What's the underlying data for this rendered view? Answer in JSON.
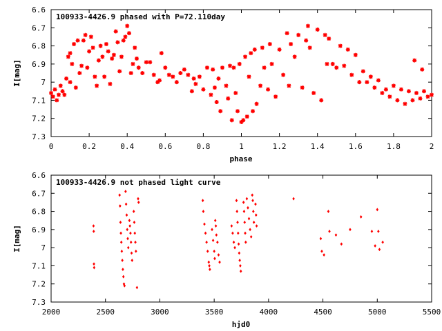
{
  "chart_data": [
    {
      "type": "scatter",
      "title": "100933-4426.9 phased with P=72.110day",
      "xlabel": "phase",
      "ylabel": "I[mag]",
      "xlim": [
        0,
        2
      ],
      "ylim": [
        6.6,
        7.3
      ],
      "y_inverted": true,
      "grid": false,
      "legend": "none",
      "marker": "star",
      "color": "#ff0000",
      "x_ticks": [
        {
          "value": 0,
          "label": "0"
        },
        {
          "value": 0.2,
          "label": "0.2"
        },
        {
          "value": 0.4,
          "label": "0.4"
        },
        {
          "value": 0.6,
          "label": "0.6"
        },
        {
          "value": 0.8,
          "label": "0.8"
        },
        {
          "value": 1.0,
          "label": "1"
        },
        {
          "value": 1.2,
          "label": "1.2"
        },
        {
          "value": 1.4,
          "label": "1.4"
        },
        {
          "value": 1.6,
          "label": "1.6"
        },
        {
          "value": 1.8,
          "label": "1.8"
        },
        {
          "value": 2.0,
          "label": "2"
        }
      ],
      "y_ticks": [
        {
          "value": 6.6,
          "label": "6.6"
        },
        {
          "value": 6.7,
          "label": "6.7"
        },
        {
          "value": 6.8,
          "label": "6.8"
        },
        {
          "value": 6.9,
          "label": "6.9"
        },
        {
          "value": 7.0,
          "label": "7"
        },
        {
          "value": 7.1,
          "label": "7.1"
        },
        {
          "value": 7.2,
          "label": "7.2"
        },
        {
          "value": 7.3,
          "label": "7.3"
        }
      ],
      "points": [
        [
          0.0,
          7.06
        ],
        [
          0.01,
          7.08
        ],
        [
          0.02,
          7.04
        ],
        [
          0.03,
          7.1
        ],
        [
          0.04,
          7.07
        ],
        [
          0.05,
          7.02
        ],
        [
          0.06,
          7.05
        ],
        [
          0.07,
          7.07
        ],
        [
          0.08,
          6.98
        ],
        [
          0.09,
          6.86
        ],
        [
          0.1,
          6.84
        ],
        [
          0.1,
          7.0
        ],
        [
          0.11,
          6.9
        ],
        [
          0.12,
          6.79
        ],
        [
          0.13,
          7.03
        ],
        [
          0.14,
          6.77
        ],
        [
          0.15,
          6.95
        ],
        [
          0.16,
          6.91
        ],
        [
          0.17,
          6.77
        ],
        [
          0.18,
          6.74
        ],
        [
          0.19,
          6.92
        ],
        [
          0.2,
          6.83
        ],
        [
          0.21,
          6.75
        ],
        [
          0.22,
          6.81
        ],
        [
          0.23,
          6.97
        ],
        [
          0.24,
          7.02
        ],
        [
          0.25,
          6.88
        ],
        [
          0.26,
          6.8
        ],
        [
          0.27,
          6.86
        ],
        [
          0.28,
          6.97
        ],
        [
          0.29,
          6.79
        ],
        [
          0.3,
          6.83
        ],
        [
          0.31,
          7.01
        ],
        [
          0.32,
          6.87
        ],
        [
          0.33,
          6.85
        ],
        [
          0.34,
          6.72
        ],
        [
          0.35,
          6.78
        ],
        [
          0.36,
          6.94
        ],
        [
          0.37,
          6.86
        ],
        [
          0.38,
          6.77
        ],
        [
          0.39,
          6.75
        ],
        [
          0.4,
          6.69
        ],
        [
          0.41,
          6.73
        ],
        [
          0.42,
          6.95
        ],
        [
          0.43,
          6.9
        ],
        [
          0.44,
          6.81
        ],
        [
          0.45,
          6.87
        ],
        [
          0.46,
          6.92
        ],
        [
          0.48,
          6.95
        ],
        [
          0.5,
          6.89
        ],
        [
          0.52,
          6.89
        ],
        [
          0.54,
          6.96
        ],
        [
          0.56,
          7.0
        ],
        [
          0.57,
          6.99
        ],
        [
          0.58,
          6.84
        ],
        [
          0.6,
          6.92
        ],
        [
          0.62,
          6.96
        ],
        [
          0.64,
          6.97
        ],
        [
          0.66,
          7.0
        ],
        [
          0.68,
          6.95
        ],
        [
          0.7,
          6.93
        ],
        [
          0.72,
          6.96
        ],
        [
          0.74,
          7.05
        ],
        [
          0.75,
          6.98
        ],
        [
          0.76,
          7.01
        ],
        [
          0.78,
          6.97
        ],
        [
          0.8,
          7.04
        ],
        [
          0.82,
          6.92
        ],
        [
          0.84,
          7.07
        ],
        [
          0.85,
          6.93
        ],
        [
          0.86,
          7.03
        ],
        [
          0.87,
          7.11
        ],
        [
          0.88,
          6.98
        ],
        [
          0.89,
          7.16
        ],
        [
          0.9,
          6.92
        ],
        [
          0.92,
          7.02
        ],
        [
          0.93,
          7.09
        ],
        [
          0.94,
          6.91
        ],
        [
          0.95,
          7.21
        ],
        [
          0.96,
          6.92
        ],
        [
          0.97,
          7.06
        ],
        [
          0.98,
          7.16
        ],
        [
          0.99,
          6.9
        ],
        [
          1.0,
          7.22
        ],
        [
          1.01,
          7.21
        ],
        [
          1.02,
          6.86
        ],
        [
          1.03,
          7.19
        ],
        [
          1.04,
          6.97
        ],
        [
          1.05,
          6.84
        ],
        [
          1.06,
          7.16
        ],
        [
          1.07,
          6.82
        ],
        [
          1.08,
          7.12
        ],
        [
          1.1,
          7.02
        ],
        [
          1.11,
          6.81
        ],
        [
          1.12,
          6.92
        ],
        [
          1.14,
          7.04
        ],
        [
          1.15,
          6.79
        ],
        [
          1.16,
          6.9
        ],
        [
          1.18,
          7.08
        ],
        [
          1.2,
          6.82
        ],
        [
          1.22,
          6.96
        ],
        [
          1.24,
          6.73
        ],
        [
          1.25,
          7.02
        ],
        [
          1.26,
          6.79
        ],
        [
          1.28,
          6.86
        ],
        [
          1.3,
          6.74
        ],
        [
          1.32,
          7.03
        ],
        [
          1.34,
          6.77
        ],
        [
          1.35,
          6.69
        ],
        [
          1.36,
          6.81
        ],
        [
          1.38,
          7.06
        ],
        [
          1.4,
          6.71
        ],
        [
          1.42,
          7.1
        ],
        [
          1.44,
          6.74
        ],
        [
          1.45,
          6.9
        ],
        [
          1.46,
          6.76
        ],
        [
          1.48,
          6.9
        ],
        [
          1.5,
          6.92
        ],
        [
          1.52,
          6.8
        ],
        [
          1.54,
          6.91
        ],
        [
          1.56,
          6.82
        ],
        [
          1.58,
          6.96
        ],
        [
          1.6,
          6.85
        ],
        [
          1.62,
          7.0
        ],
        [
          1.64,
          6.94
        ],
        [
          1.66,
          7.0
        ],
        [
          1.68,
          6.97
        ],
        [
          1.7,
          7.03
        ],
        [
          1.72,
          6.99
        ],
        [
          1.74,
          7.06
        ],
        [
          1.76,
          7.04
        ],
        [
          1.78,
          7.08
        ],
        [
          1.8,
          7.02
        ],
        [
          1.82,
          7.1
        ],
        [
          1.84,
          7.04
        ],
        [
          1.86,
          7.12
        ],
        [
          1.88,
          7.05
        ],
        [
          1.9,
          7.1
        ],
        [
          1.91,
          6.88
        ],
        [
          1.92,
          7.06
        ],
        [
          1.94,
          7.09
        ],
        [
          1.95,
          6.93
        ],
        [
          1.96,
          7.05
        ],
        [
          1.98,
          7.08
        ],
        [
          2.0,
          7.07
        ]
      ]
    },
    {
      "type": "scatter",
      "title": "100933-4426.9 not phased light curve",
      "xlabel": "hjd0",
      "ylabel": "I[mag]",
      "xlim": [
        2000,
        5500
      ],
      "ylim": [
        6.6,
        7.3
      ],
      "y_inverted": true,
      "grid": false,
      "legend": "none",
      "marker": "diamond",
      "color": "#ff0000",
      "x_ticks": [
        {
          "value": 2000,
          "label": "2000"
        },
        {
          "value": 2500,
          "label": "2500"
        },
        {
          "value": 3000,
          "label": "3000"
        },
        {
          "value": 3500,
          "label": "3500"
        },
        {
          "value": 4000,
          "label": "4000"
        },
        {
          "value": 4500,
          "label": "4500"
        },
        {
          "value": 5000,
          "label": "5000"
        },
        {
          "value": 5500,
          "label": "5500"
        }
      ],
      "y_ticks": [
        {
          "value": 6.6,
          "label": "6.6"
        },
        {
          "value": 6.7,
          "label": "6.7"
        },
        {
          "value": 6.8,
          "label": "6.8"
        },
        {
          "value": 6.9,
          "label": "6.9"
        },
        {
          "value": 7.0,
          "label": "7"
        },
        {
          "value": 7.1,
          "label": "7.1"
        },
        {
          "value": 7.2,
          "label": "7.2"
        },
        {
          "value": 7.3,
          "label": "7.3"
        }
      ],
      "points": [
        [
          2390,
          6.88
        ],
        [
          2392,
          6.91
        ],
        [
          2394,
          7.09
        ],
        [
          2396,
          7.11
        ],
        [
          2630,
          6.71
        ],
        [
          2634,
          6.77
        ],
        [
          2638,
          6.86
        ],
        [
          2642,
          6.92
        ],
        [
          2646,
          6.97
        ],
        [
          2650,
          7.02
        ],
        [
          2655,
          7.07
        ],
        [
          2660,
          7.12
        ],
        [
          2665,
          7.16
        ],
        [
          2670,
          7.2
        ],
        [
          2675,
          7.21
        ],
        [
          2685,
          6.69
        ],
        [
          2690,
          6.76
        ],
        [
          2695,
          6.82
        ],
        [
          2700,
          6.9
        ],
        [
          2705,
          6.95
        ],
        [
          2710,
          7.0
        ],
        [
          2720,
          6.85
        ],
        [
          2725,
          6.88
        ],
        [
          2730,
          6.92
        ],
        [
          2735,
          6.97
        ],
        [
          2740,
          7.03
        ],
        [
          2745,
          7.07
        ],
        [
          2760,
          6.8
        ],
        [
          2765,
          6.86
        ],
        [
          2770,
          6.92
        ],
        [
          2775,
          6.97
        ],
        [
          2780,
          7.02
        ],
        [
          2790,
          7.22
        ],
        [
          2800,
          6.73
        ],
        [
          2805,
          6.75
        ],
        [
          3395,
          6.74
        ],
        [
          3400,
          6.8
        ],
        [
          3410,
          6.87
        ],
        [
          3420,
          6.92
        ],
        [
          3430,
          6.97
        ],
        [
          3440,
          7.02
        ],
        [
          3450,
          7.08
        ],
        [
          3455,
          7.1
        ],
        [
          3460,
          7.12
        ],
        [
          3480,
          6.9
        ],
        [
          3490,
          6.96
        ],
        [
          3500,
          7.02
        ],
        [
          3505,
          7.06
        ],
        [
          3510,
          6.85
        ],
        [
          3515,
          6.88
        ],
        [
          3520,
          6.93
        ],
        [
          3530,
          6.97
        ],
        [
          3540,
          7.04
        ],
        [
          3550,
          7.08
        ],
        [
          3660,
          6.88
        ],
        [
          3670,
          6.92
        ],
        [
          3680,
          6.97
        ],
        [
          3690,
          7.0
        ],
        [
          3705,
          6.74
        ],
        [
          3710,
          6.8
        ],
        [
          3715,
          6.86
        ],
        [
          3720,
          6.92
        ],
        [
          3725,
          6.98
        ],
        [
          3730,
          7.03
        ],
        [
          3735,
          7.07
        ],
        [
          3740,
          7.1
        ],
        [
          3745,
          7.13
        ],
        [
          3770,
          6.75
        ],
        [
          3775,
          6.8
        ],
        [
          3780,
          6.86
        ],
        [
          3785,
          6.92
        ],
        [
          3790,
          6.97
        ],
        [
          3800,
          6.73
        ],
        [
          3810,
          6.78
        ],
        [
          3820,
          6.84
        ],
        [
          3830,
          6.9
        ],
        [
          3840,
          6.94
        ],
        [
          3850,
          6.71
        ],
        [
          3855,
          6.74
        ],
        [
          3860,
          6.8
        ],
        [
          3865,
          6.86
        ],
        [
          3880,
          6.76
        ],
        [
          3885,
          6.82
        ],
        [
          3890,
          6.88
        ],
        [
          4230,
          6.73
        ],
        [
          4480,
          6.95
        ],
        [
          4490,
          7.02
        ],
        [
          4510,
          7.04
        ],
        [
          4550,
          6.8
        ],
        [
          4560,
          6.91
        ],
        [
          4620,
          6.93
        ],
        [
          4670,
          6.98
        ],
        [
          4750,
          6.9
        ],
        [
          4850,
          6.83
        ],
        [
          4950,
          6.91
        ],
        [
          4980,
          6.99
        ],
        [
          5000,
          6.79
        ],
        [
          5010,
          6.91
        ],
        [
          5020,
          7.01
        ],
        [
          5050,
          6.97
        ]
      ]
    }
  ]
}
